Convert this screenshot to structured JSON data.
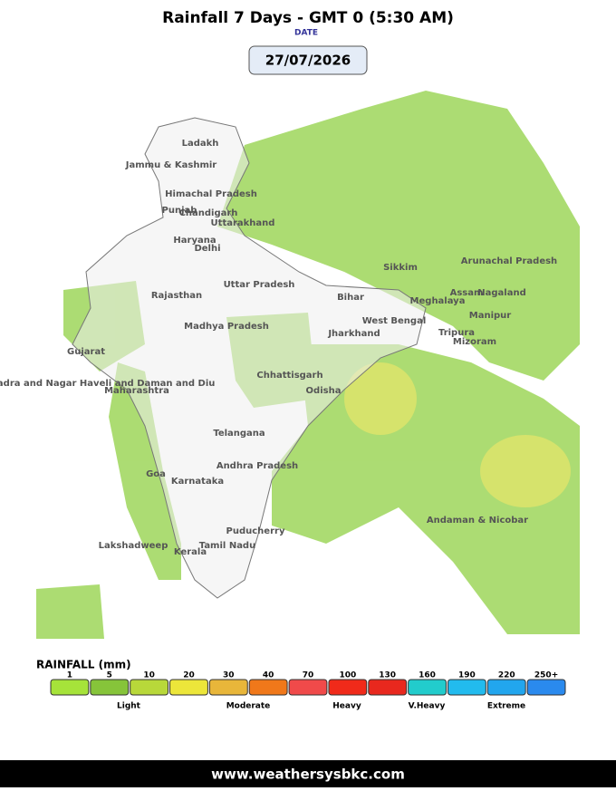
{
  "header": {
    "title": "Rainfall 7 Days - GMT 0 (5:30 AM)",
    "date_label": "DATE",
    "date": "27/07/2026"
  },
  "map": {
    "labels": [
      "Ladakh",
      "Jammu & Kashmir",
      "Himachal Pradesh",
      "Punjab",
      "Chandigarh",
      "Uttarakhand",
      "Haryana",
      "Delhi",
      "Rajasthan",
      "Uttar Pradesh",
      "Bihar",
      "Sikkim",
      "Arunachal Pradesh",
      "Assam",
      "Nagaland",
      "Meghalaya",
      "Manipur",
      "West Bengal",
      "Tripura",
      "Mizoram",
      "Jharkhand",
      "Madhya Pradesh",
      "Gujarat",
      "Chhattisgarh",
      "Odisha",
      "Dadra and Nagar Haveli and Daman and Diu",
      "Maharashtra",
      "Telangana",
      "Andhra Pradesh",
      "Goa",
      "Karnataka",
      "Andaman & Nicobar",
      "Puducherry",
      "Lakshadweep",
      "Tamil Nadu",
      "Kerala"
    ]
  },
  "legend": {
    "title": "RAINFALL (mm)",
    "items": [
      {
        "label": "1",
        "color": "#a6e33a"
      },
      {
        "label": "5",
        "color": "#86c43a"
      },
      {
        "label": "10",
        "color": "#b8d83a"
      },
      {
        "label": "20",
        "color": "#ece63a"
      },
      {
        "label": "30",
        "color": "#e8b63a"
      },
      {
        "label": "40",
        "color": "#f0781a"
      },
      {
        "label": "70",
        "color": "#f04a4a"
      },
      {
        "label": "100",
        "color": "#f02a1a"
      },
      {
        "label": "130",
        "color": "#e8281e"
      },
      {
        "label": "160",
        "color": "#22cccc"
      },
      {
        "label": "190",
        "color": "#22bbee"
      },
      {
        "label": "220",
        "color": "#22a6ee"
      },
      {
        "label": "250+",
        "color": "#2a8aee"
      }
    ],
    "categories": [
      "Light",
      "Moderate",
      "Heavy",
      "V.Heavy",
      "Extreme"
    ]
  },
  "footer": {
    "url": "www.weathersysbkc.com"
  }
}
